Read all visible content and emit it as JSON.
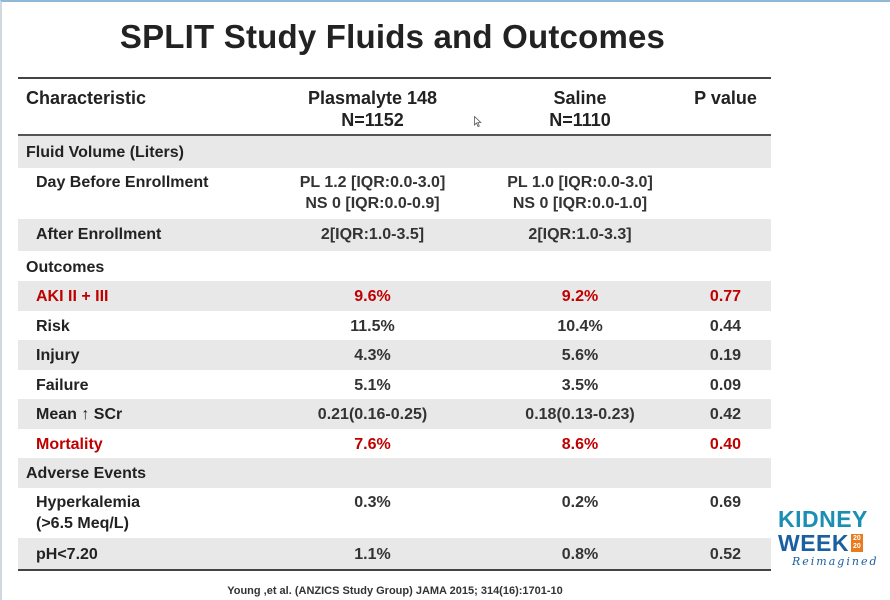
{
  "title": "SPLIT Study Fluids and Outcomes",
  "table": {
    "headers": {
      "characteristic": "Characteristic",
      "plasmalyte_line1": "Plasmalyte 148",
      "plasmalyte_line2": "N=1152",
      "saline_line1": "Saline",
      "saline_line2": "N=1110",
      "p_value": "P value"
    },
    "sections": {
      "fluid_volume": "Fluid Volume (Liters)",
      "outcomes": "Outcomes",
      "adverse_events": "Adverse Events"
    },
    "rows": {
      "day_before": {
        "label": "Day Before Enrollment",
        "pl_line1": "PL 1.2 [IQR:0.0-3.0]",
        "pl_line2": "NS 0 [IQR:0.0-0.9]",
        "ns_line1": "PL 1.0 [IQR:0.0-3.0]",
        "ns_line2": "NS 0 [IQR:0.0-1.0]",
        "p": ""
      },
      "after_enrollment": {
        "label": "After Enrollment",
        "pl": "2[IQR:1.0-3.5]",
        "ns": "2[IQR:1.0-3.3]",
        "p": ""
      },
      "aki": {
        "label": "AKI II + III",
        "pl": "9.6%",
        "ns": "9.2%",
        "p": "0.77"
      },
      "risk": {
        "label": "Risk",
        "pl": "11.5%",
        "ns": "10.4%",
        "p": "0.44"
      },
      "injury": {
        "label": "Injury",
        "pl": "4.3%",
        "ns": "5.6%",
        "p": "0.19"
      },
      "failure": {
        "label": "Failure",
        "pl": "5.1%",
        "ns": "3.5%",
        "p": "0.09"
      },
      "mean_scr": {
        "label": "Mean ↑ SCr",
        "pl": "0.21(0.16-0.25)",
        "ns": "0.18(0.13-0.23)",
        "p": "0.42"
      },
      "mortality": {
        "label": "Mortality",
        "pl": "7.6%",
        "ns": "8.6%",
        "p": "0.40"
      },
      "hyperkalemia": {
        "label_line1": "Hyperkalemia",
        "label_line2": "(>6.5 Meq/L)",
        "pl": "0.3%",
        "ns": "0.2%",
        "p": "0.69"
      },
      "ph": {
        "label": "pH<7.20",
        "pl": "1.1%",
        "ns": "0.8%",
        "p": "0.52"
      }
    }
  },
  "citation": "Young ,et al. (ANZICS Study Group) JAMA 2015; 314(16):1701-10",
  "logo": {
    "kidney": "KIDNEY",
    "week": "WEEK",
    "year_top": "20",
    "year_bottom": "20",
    "reimagined": "Reimagined"
  },
  "colors": {
    "highlight": "#c00000",
    "shade": "#e8e8e8",
    "logo_blue": "#1a8fb3",
    "logo_orange": "#e87b1e"
  }
}
